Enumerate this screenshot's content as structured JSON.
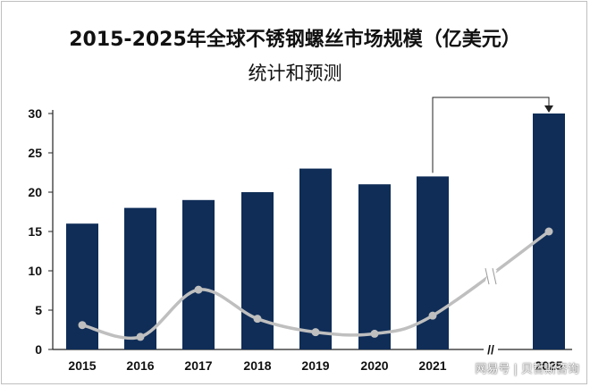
{
  "chart_data": {
    "type": "bar",
    "title_line1": "2015-2025年全球不锈钢螺丝市场规模（亿美元）",
    "title_line2": "统计和预测",
    "categories": [
      "2015",
      "2016",
      "2017",
      "2018",
      "2019",
      "2020",
      "2021",
      "2025"
    ],
    "values": [
      16,
      18,
      19,
      20,
      23,
      21,
      22,
      30
    ],
    "trend_values": [
      3.1,
      1.6,
      7.6,
      3.9,
      2.2,
      2.0,
      4.3,
      15.0
    ],
    "yticks": [
      0,
      5,
      10,
      15,
      20,
      25,
      30
    ],
    "ylim": [
      0,
      30
    ],
    "axis_break": "//",
    "bar_color": "#0f2d57",
    "trend_color": "#bfbfbf",
    "grid": false
  },
  "watermark": "网易号 | 贝哲斯咨询"
}
